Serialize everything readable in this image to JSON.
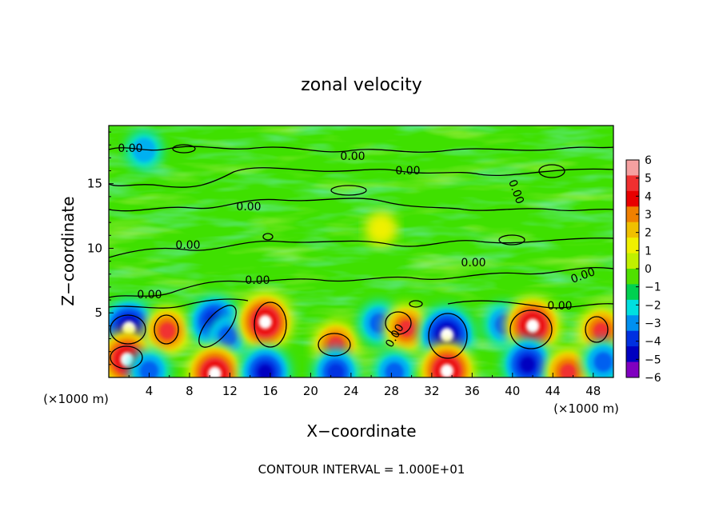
{
  "chart_data": {
    "type": "heatmap",
    "title": "zonal velocity",
    "xlabel": "X−coordinate",
    "ylabel": "Z−coordinate",
    "x_unit_left": "(×1000 m)",
    "x_unit_right": "(×1000 m)",
    "footer": "CONTOUR INTERVAL = 1.000E+01",
    "xlim": [
      0,
      50
    ],
    "ylim": [
      0,
      19.5
    ],
    "x_ticks": [
      4,
      8,
      12,
      16,
      20,
      24,
      28,
      32,
      36,
      40,
      44,
      48
    ],
    "y_ticks": [
      5,
      10,
      15
    ],
    "colorbar": {
      "range": [
        -6,
        6
      ],
      "ticks": [
        "6",
        "5",
        "4",
        "3",
        "2",
        "1",
        "0",
        "−1",
        "−2",
        "−3",
        "−4",
        "−5",
        "−6"
      ],
      "colors": [
        "#f5a0a0",
        "#f03030",
        "#e80000",
        "#f08000",
        "#f0c000",
        "#f0f000",
        "#c0f000",
        "#50e000",
        "#00d050",
        "#00e0e0",
        "#0090f0",
        "#0030e0",
        "#0000c0",
        "#8000c0"
      ]
    },
    "contour_label": "0.00",
    "blobs": [
      {
        "x": 2,
        "y": 3.8,
        "v": -6
      },
      {
        "x": 1.8,
        "y": 1.4,
        "v": 6
      },
      {
        "x": 5.8,
        "y": 3.6,
        "v": 4
      },
      {
        "x": 4,
        "y": 0.5,
        "v": -3
      },
      {
        "x": 10.5,
        "y": 4.3,
        "v": -5
      },
      {
        "x": 11.8,
        "y": 3.2,
        "v": -3
      },
      {
        "x": 10.5,
        "y": 0.3,
        "v": 6
      },
      {
        "x": 15.5,
        "y": 4.3,
        "v": 6
      },
      {
        "x": 15.5,
        "y": 0.4,
        "v": -5
      },
      {
        "x": 22.5,
        "y": 2.5,
        "v": 4
      },
      {
        "x": 22.5,
        "y": 0.4,
        "v": -4
      },
      {
        "x": 26.8,
        "y": 4.2,
        "v": -3
      },
      {
        "x": 29.5,
        "y": 3.8,
        "v": 4
      },
      {
        "x": 28.3,
        "y": 0.4,
        "v": -3
      },
      {
        "x": 33.5,
        "y": 3.3,
        "v": -6
      },
      {
        "x": 33.5,
        "y": 0.5,
        "v": 6
      },
      {
        "x": 39.2,
        "y": 4.1,
        "v": -3
      },
      {
        "x": 42,
        "y": 4,
        "v": 6
      },
      {
        "x": 41.5,
        "y": 1,
        "v": -5
      },
      {
        "x": 45.5,
        "y": 0.4,
        "v": 4
      },
      {
        "x": 48.8,
        "y": 3.6,
        "v": 4
      },
      {
        "x": 49,
        "y": 1.2,
        "v": -3
      },
      {
        "x": 3.5,
        "y": 17.6,
        "v": -2
      },
      {
        "x": 27,
        "y": 11.5,
        "v": 1
      }
    ]
  }
}
